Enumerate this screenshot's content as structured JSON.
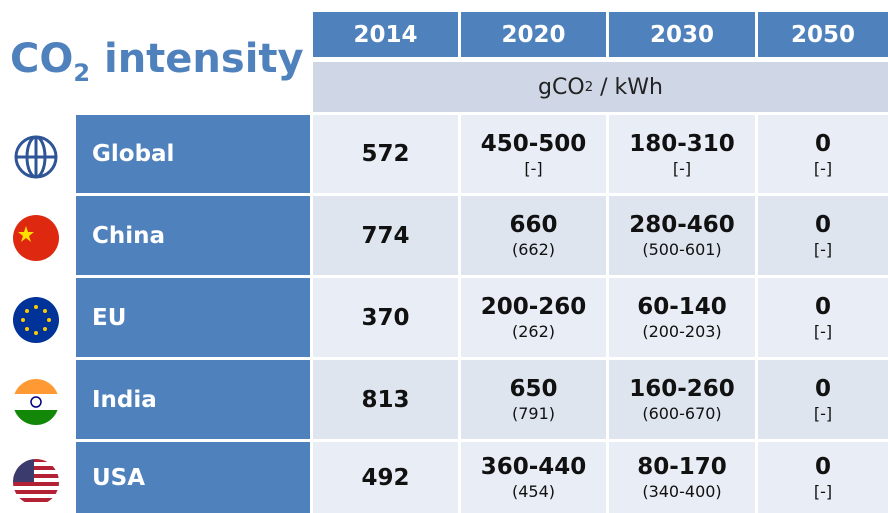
{
  "title": [
    "CO",
    "2",
    " intensity"
  ],
  "unit": [
    "gCO",
    "2",
    " / kWh"
  ],
  "columns": [
    "2014",
    "2020",
    "2030",
    "2050"
  ],
  "rows": [
    {
      "name": "Global",
      "cells": [
        [
          572
        ],
        [
          "450-500",
          "[-]"
        ],
        [
          "180-310",
          "[-]"
        ],
        [
          0,
          "[-]"
        ]
      ]
    },
    {
      "name": "China",
      "cells": [
        [
          774
        ],
        [
          660,
          "(662)"
        ],
        [
          "280-460",
          "(500-601)"
        ],
        [
          0,
          "[-]"
        ]
      ]
    },
    {
      "name": "EU",
      "cells": [
        [
          370
        ],
        [
          "200-260",
          "(262)"
        ],
        [
          "60-140",
          "(200-203)"
        ],
        [
          0,
          "[-]"
        ]
      ]
    },
    {
      "name": "India",
      "cells": [
        [
          813
        ],
        [
          650,
          "(791)"
        ],
        [
          "160-260",
          "(600-670)"
        ],
        [
          0,
          "[-]"
        ]
      ]
    },
    {
      "name": "USA",
      "cells": [
        [
          492
        ],
        [
          "360-440",
          "(454)"
        ],
        [
          "80-170",
          "(340-400)"
        ],
        [
          0,
          "[-]"
        ]
      ]
    }
  ]
}
